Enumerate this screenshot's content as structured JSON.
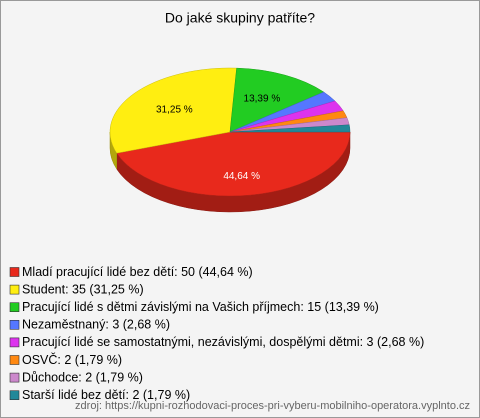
{
  "chart_data": {
    "type": "pie3d",
    "title": "Do jaké skupiny patříte?",
    "categories": [
      "Mladí pracující lidé bez dětí: 50 (44,64 %)",
      "Student: 35 (31,25 %)",
      "Pracující lidé s dětmi závislými na Vašich příjmech: 15 (13,39 %)",
      "Nezaměstnaný: 3 (2,68 %)",
      "Pracující lidé se samostatnými, nezávislými, dospělými dětmi: 3 (2,68 %)",
      "OSVČ: 2 (1,79 %)",
      "Důchodce: 2 (1,79 %)",
      "Starší lidé bez dětí: 2 (1,79 %)"
    ],
    "values": [
      44.64,
      31.25,
      13.39,
      2.68,
      2.68,
      1.79,
      1.79,
      1.79
    ],
    "value_labels": [
      "44,64 %",
      "31,25 %",
      "13,39 %",
      null,
      null,
      null,
      null,
      null
    ],
    "colors": [
      "#e8291c",
      "#ffee11",
      "#22cc22",
      "#5577ff",
      "#dd33ee",
      "#ff8811",
      "#cc88cc",
      "#228899"
    ],
    "legend": "bottom-left",
    "source": "zdroj: https://kupni-rozhodovaci-proces-pri-vyberu-mobilniho-operatora.vyplnto.cz"
  }
}
